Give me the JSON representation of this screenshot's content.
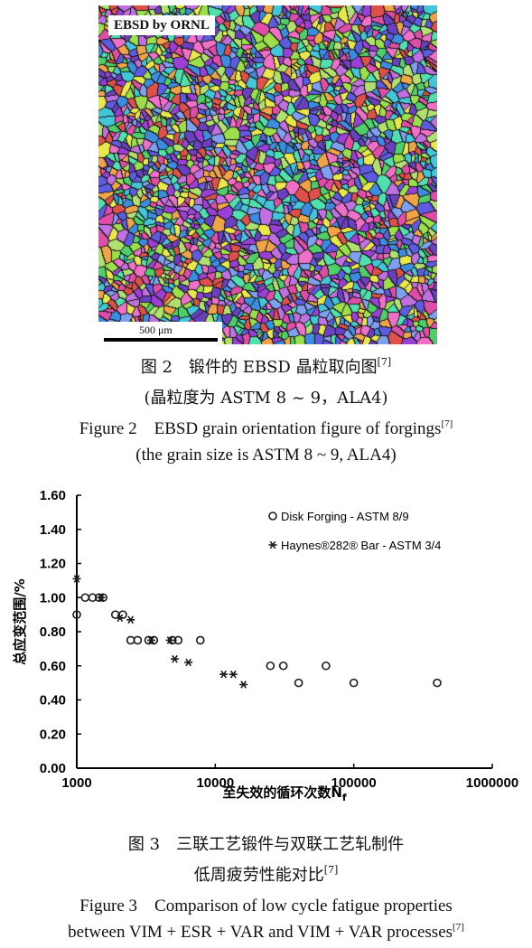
{
  "figure2": {
    "overlay_label": "EBSD by ORNL",
    "scale_bar_label": "500 μm",
    "caption_zh_line1": "图 2　锻件的 EBSD 晶粒取向图",
    "caption_zh_ref": "[7]",
    "caption_zh_line2": "(晶粒度为 ASTM 8 ~ 9，ALA4)",
    "caption_en_line1": "Figure 2　EBSD grain orientation figure of forgings",
    "caption_en_ref": "[7]",
    "caption_en_line2": "(the grain size is ASTM 8 ~ 9,  ALA4)"
  },
  "figure3": {
    "caption_zh_line1": "图 3　三联工艺锻件与双联工艺轧制件",
    "caption_zh_line2": "低周疲劳性能对比",
    "caption_zh_ref": "[7]",
    "caption_en_line1": "Figure 3　Comparison of low cycle fatigue properties",
    "caption_en_line2": "between VIM + ESR + VAR and VIM + VAR processes",
    "caption_en_ref": "[7]"
  },
  "chart_data": {
    "type": "scatter",
    "title": "",
    "xlabel": "至失效的循环次数N",
    "xlabel_subscript": "f",
    "ylabel": "总应变范围/%",
    "xscale": "log",
    "xlim": [
      1000,
      1000000
    ],
    "ylim": [
      0.0,
      1.6
    ],
    "x_ticks": [
      1000,
      10000,
      100000,
      1000000
    ],
    "x_tick_labels": [
      "1000",
      "10000",
      "100000",
      "1000000"
    ],
    "y_ticks": [
      0.0,
      0.2,
      0.4,
      0.6,
      0.8,
      1.0,
      1.2,
      1.4,
      1.6
    ],
    "y_tick_labels": [
      "0.00",
      "0.20",
      "0.40",
      "0.60",
      "0.80",
      "1.00",
      "1.20",
      "1.40",
      "1.60"
    ],
    "grid": false,
    "legend_position": "top-right",
    "series": [
      {
        "name": "Disk Forging - ASTM 8/9",
        "marker": "open-circle",
        "color": "#1a1a1a",
        "points": [
          [
            1000,
            0.9
          ],
          [
            1150,
            1.0
          ],
          [
            1300,
            1.0
          ],
          [
            1450,
            1.0
          ],
          [
            1550,
            1.0
          ],
          [
            1900,
            0.9
          ],
          [
            2150,
            0.9
          ],
          [
            2450,
            0.75
          ],
          [
            2750,
            0.75
          ],
          [
            3300,
            0.75
          ],
          [
            3600,
            0.75
          ],
          [
            4900,
            0.75
          ],
          [
            5400,
            0.75
          ],
          [
            7800,
            0.75
          ],
          [
            25000,
            0.6
          ],
          [
            31000,
            0.6
          ],
          [
            40000,
            0.5
          ],
          [
            63000,
            0.6
          ],
          [
            100000,
            0.5
          ],
          [
            400000,
            0.5
          ]
        ]
      },
      {
        "name": "Haynes®282® Bar - ASTM 3/4",
        "marker": "asterisk",
        "color": "#1a1a1a",
        "points": [
          [
            1000,
            1.11
          ],
          [
            1500,
            1.0
          ],
          [
            2050,
            0.88
          ],
          [
            2450,
            0.87
          ],
          [
            3450,
            0.75
          ],
          [
            4700,
            0.75
          ],
          [
            5100,
            0.64
          ],
          [
            6400,
            0.62
          ],
          [
            11500,
            0.55
          ],
          [
            13500,
            0.55
          ],
          [
            16000,
            0.49
          ]
        ]
      }
    ]
  }
}
